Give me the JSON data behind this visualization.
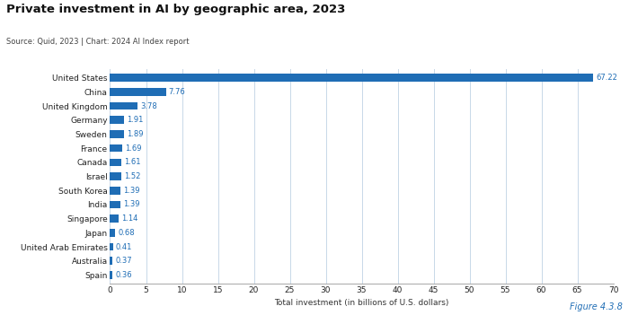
{
  "title": "Private investment in AI by geographic area, 2023",
  "source": "Source: Quid, 2023 | Chart: 2024 AI Index report",
  "figure_label": "Figure 4.3.8",
  "xlabel": "Total investment (in billions of U.S. dollars)",
  "categories": [
    "United States",
    "China",
    "United Kingdom",
    "Germany",
    "Sweden",
    "France",
    "Canada",
    "Israel",
    "South Korea",
    "India",
    "Singapore",
    "Japan",
    "United Arab Emirates",
    "Australia",
    "Spain"
  ],
  "values": [
    67.22,
    7.76,
    3.78,
    1.91,
    1.89,
    1.69,
    1.61,
    1.52,
    1.39,
    1.39,
    1.14,
    0.68,
    0.41,
    0.37,
    0.36
  ],
  "bar_color": "#1F6DB5",
  "label_color": "#1F6DB5",
  "background_color": "#ffffff",
  "grid_color": "#c8d8e8",
  "xlim": [
    0,
    70
  ],
  "xticks": [
    0,
    5,
    10,
    15,
    20,
    25,
    30,
    35,
    40,
    45,
    50,
    55,
    60,
    65,
    70
  ],
  "title_fontsize": 9.5,
  "source_fontsize": 6.0,
  "ylabel_fontsize": 6.5,
  "tick_fontsize": 6.5,
  "bar_label_fontsize": 6.0,
  "xlabel_fontsize": 6.5,
  "figure_label_fontsize": 7.0
}
